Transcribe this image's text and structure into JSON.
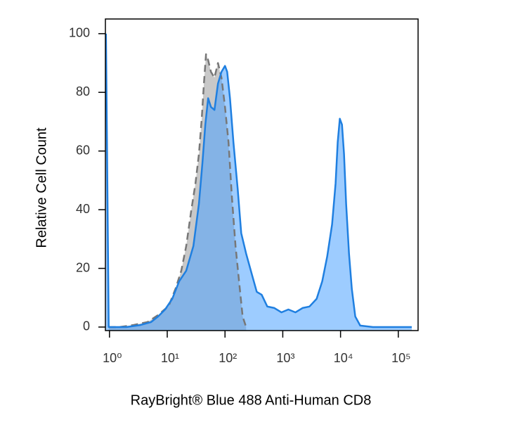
{
  "chart_data": {
    "type": "histogram-overlay",
    "xlabel": "RayBright® Blue 488 Anti-Human CD8",
    "ylabel": "Relative Cell Count",
    "xscale": "log",
    "xlim": [
      0.85,
      220000
    ],
    "xticks": [
      {
        "value": 1,
        "label": "10⁰"
      },
      {
        "value": 10,
        "label": "10¹"
      },
      {
        "value": 100,
        "label": "10²"
      },
      {
        "value": 1000,
        "label": "10³"
      },
      {
        "value": 10000,
        "label": "10⁴"
      },
      {
        "value": 100000,
        "label": "10⁵"
      }
    ],
    "ylim": [
      -1.2,
      105
    ],
    "yticks": [
      0,
      20,
      40,
      60,
      80,
      100
    ],
    "series": [
      {
        "color": "#777777",
        "fill": "#c8c8c8",
        "fill_opacity": 1,
        "line_style": "dashed",
        "x": [
          0.97,
          1.48,
          2.6,
          4.56,
          6.94,
          10.6,
          14.0,
          17.5,
          21.3,
          26.0,
          30.8,
          35.4,
          39.6,
          43.1,
          46.9,
          51.0,
          57.0,
          65.6,
          75.5,
          86.9,
          100,
          115,
          132,
          152,
          175,
          202,
          232
        ],
        "values": [
          0,
          0,
          0.7,
          1.7,
          4.1,
          7.2,
          13.2,
          19.2,
          27.6,
          39.6,
          49,
          59,
          71,
          83,
          93,
          91,
          87,
          85,
          90,
          85,
          75,
          63,
          44,
          27.6,
          15.6,
          3.6,
          0
        ]
      },
      {
        "color": "#1f7fe0",
        "fill": "#4da3ff",
        "fill_opacity": 0.55,
        "line_style": "solid",
        "x": [
          0.87,
          0.97,
          1.12,
          1.96,
          3.44,
          5.25,
          6.94,
          9.19,
          12.2,
          16.1,
          21.3,
          28.3,
          35.4,
          40.7,
          45.6,
          51.0,
          57.0,
          65.6,
          75.5,
          86.9,
          100,
          109,
          122,
          140,
          166,
          191,
          232,
          291,
          354,
          431,
          540,
          714,
          947,
          1250,
          1660,
          2200,
          2900,
          3850,
          4820,
          5870,
          7140,
          8220,
          8940,
          9720,
          10600,
          11500,
          12500,
          14000,
          15700,
          18000,
          21900,
          36400,
          84500,
          171000
        ],
        "values": [
          100,
          0,
          0,
          0,
          0.7,
          1.7,
          3.6,
          6.0,
          9.6,
          15.6,
          19.2,
          27.6,
          42,
          56,
          69,
          78,
          75,
          74,
          83,
          87,
          89,
          87,
          78,
          63,
          47,
          32,
          25,
          18,
          12,
          11,
          7,
          6.5,
          5,
          6,
          5,
          6.5,
          7,
          9.6,
          15.6,
          24,
          35,
          49,
          63,
          71,
          69,
          59,
          42,
          25,
          13,
          3.6,
          0.5,
          0,
          0,
          0
        ]
      }
    ]
  }
}
